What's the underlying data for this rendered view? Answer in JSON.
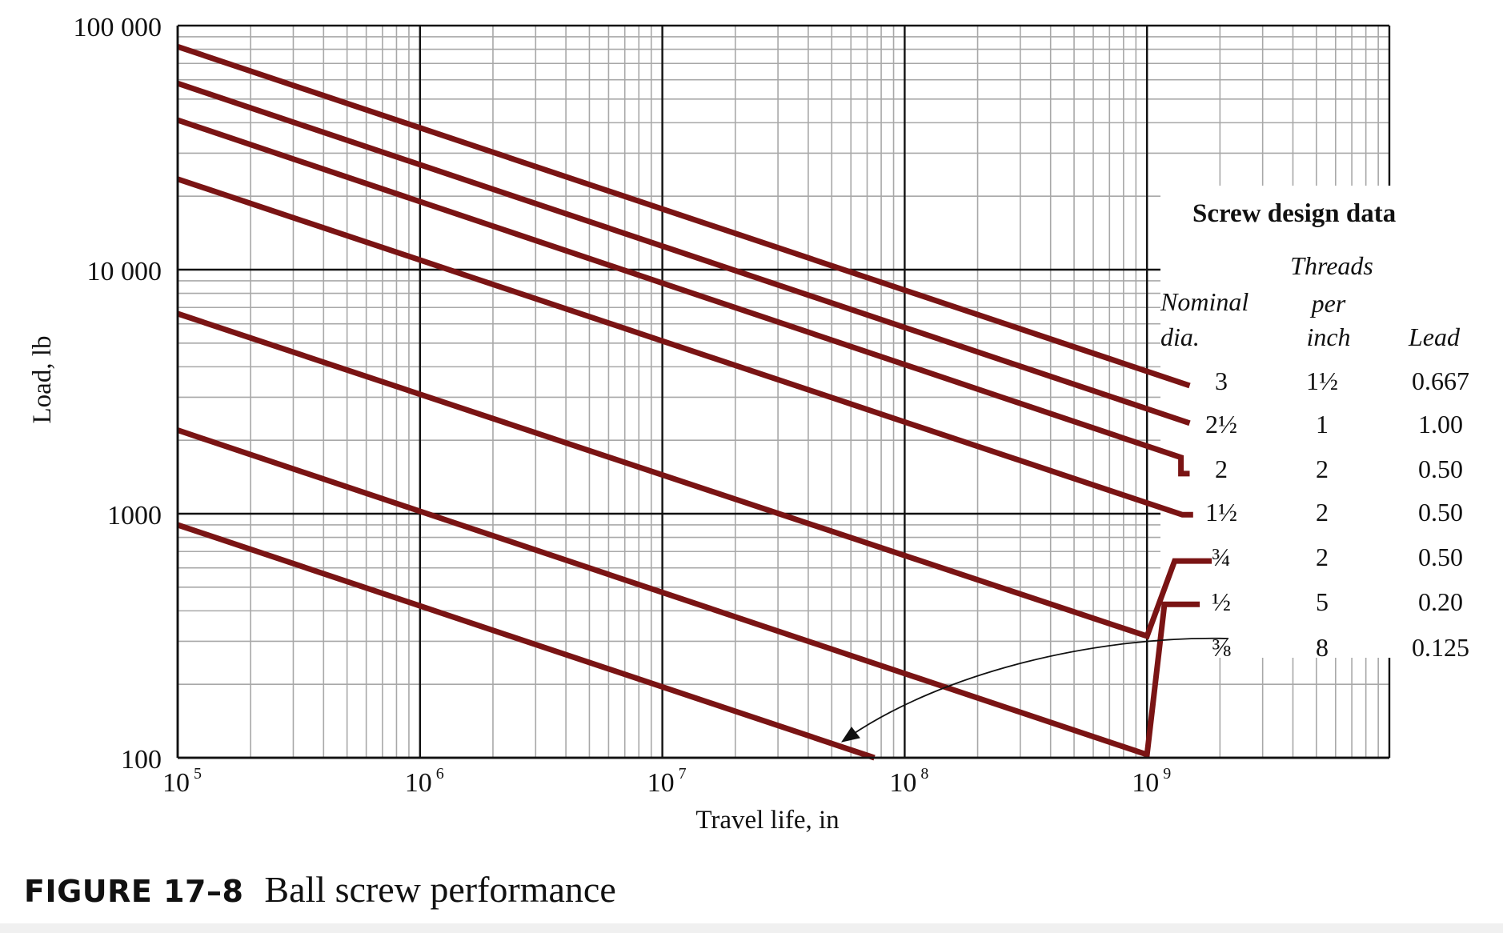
{
  "figure": {
    "label": "FIGURE 17–8",
    "title": "Ball screw performance"
  },
  "chart_data": {
    "type": "line",
    "title": "Ball screw performance",
    "xlabel": "Travel life, in",
    "ylabel": "Load, lb",
    "x_scale": "log",
    "y_scale": "log",
    "xlim": [
      100000,
      10000000000
    ],
    "ylim": [
      100,
      100000
    ],
    "grid": true,
    "x_ticks": [
      {
        "base": "10",
        "exp": "5"
      },
      {
        "base": "10",
        "exp": "6"
      },
      {
        "base": "10",
        "exp": "7"
      },
      {
        "base": "10",
        "exp": "8"
      },
      {
        "base": "10",
        "exp": "9"
      }
    ],
    "y_ticks": [
      "100",
      "1000",
      "10 000",
      "100 000"
    ],
    "series": [
      {
        "name": "3",
        "color": "#7a1414",
        "points": [
          [
            100000,
            82000
          ],
          [
            1500000000,
            3350
          ]
        ]
      },
      {
        "name": "2½",
        "color": "#7a1414",
        "points": [
          [
            100000,
            58000
          ],
          [
            1500000000,
            2350
          ]
        ]
      },
      {
        "name": "2",
        "color": "#7a1414",
        "points": [
          [
            100000,
            41000
          ],
          [
            1380000000,
            1700
          ],
          [
            1380000000,
            1460
          ],
          [
            1500000000,
            1460
          ]
        ]
      },
      {
        "name": "1½",
        "color": "#7a1414",
        "points": [
          [
            100000,
            23500
          ],
          [
            1400000000,
            990
          ],
          [
            1550000000,
            990
          ]
        ]
      },
      {
        "name": "¾",
        "color": "#7a1414",
        "points": [
          [
            100000,
            6600
          ],
          [
            1000000000,
            315
          ],
          [
            1300000000,
            640
          ],
          [
            1850000000,
            640
          ]
        ]
      },
      {
        "name": "½",
        "color": "#7a1414",
        "points": [
          [
            100000,
            2200
          ],
          [
            1000000000,
            103
          ],
          [
            1180000000,
            425
          ],
          [
            1650000000,
            425
          ]
        ]
      },
      {
        "name": "⅜",
        "color": "#7a1414",
        "points": [
          [
            100000,
            900
          ],
          [
            75000000,
            100
          ]
        ]
      }
    ],
    "legend": {
      "title": "Screw design data",
      "columns": {
        "nominal_dia": [
          "Nominal",
          "dia."
        ],
        "threads_per_inch": [
          "Threads",
          "per",
          "inch"
        ],
        "lead": [
          "Lead"
        ]
      },
      "rows": [
        {
          "dia": "3",
          "tpi": "1½",
          "lead": "0.667"
        },
        {
          "dia": "2½",
          "tpi": "1",
          "lead": "1.00"
        },
        {
          "dia": "2",
          "tpi": "2",
          "lead": "0.50"
        },
        {
          "dia": "1½",
          "tpi": "2",
          "lead": "0.50"
        },
        {
          "dia": "¾",
          "tpi": "2",
          "lead": "0.50"
        },
        {
          "dia": "½",
          "tpi": "5",
          "lead": "0.20"
        },
        {
          "dia": "⅜",
          "tpi": "8",
          "lead": "0.125"
        }
      ]
    }
  }
}
